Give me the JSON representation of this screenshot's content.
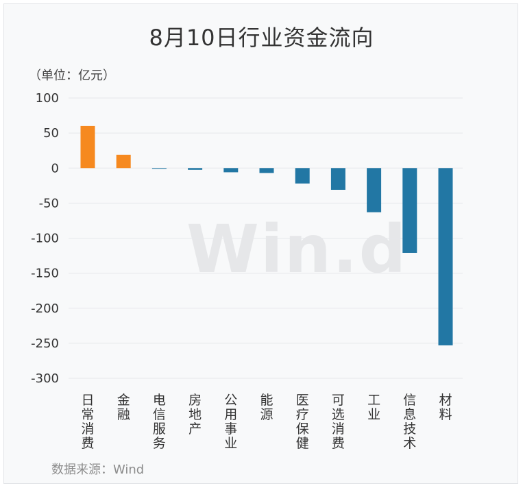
{
  "chart_data": {
    "type": "bar",
    "title": "8月10日行业资金流向",
    "unit_label": "（单位：亿元）",
    "source": "数据来源：Wind",
    "watermark": "Win.d",
    "categories": [
      "日常消费",
      "金融",
      "电信服务",
      "房地产",
      "公用事业",
      "能源",
      "医疗保健",
      "可选消费",
      "工业",
      "信息技术",
      "材料"
    ],
    "values": [
      60,
      19,
      -1,
      -2.5,
      -6,
      -7,
      -22,
      -31,
      -63,
      -121,
      -253
    ],
    "ylim": [
      -300,
      100
    ],
    "yticks": [
      100,
      50,
      0,
      -50,
      -100,
      -150,
      -200,
      -250,
      -300
    ],
    "ytick_labels": [
      "100",
      "50",
      "0",
      "-50",
      "-100",
      "-150",
      "-200",
      "-250",
      "-300"
    ],
    "grid": true,
    "colors": {
      "positive": "#f6891f",
      "negative": "#2277a4",
      "grid": "#e6e8eb"
    }
  }
}
